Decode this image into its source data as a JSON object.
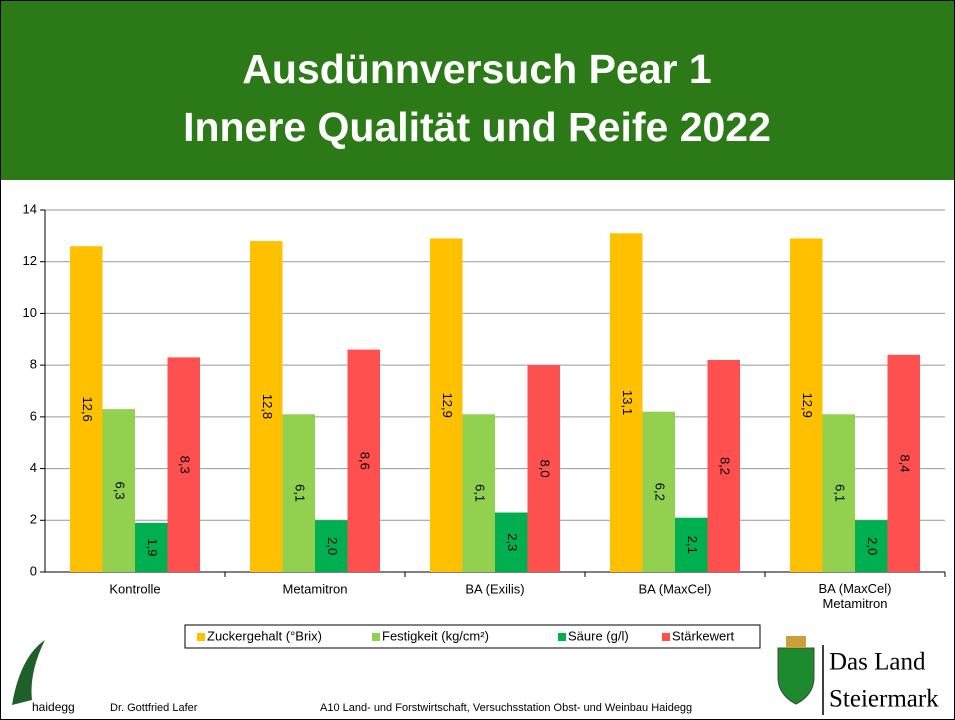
{
  "chart_data": {
    "type": "bar",
    "title": [
      "Ausdünnversuch Pear 1",
      "Innere Qualität und Reife 2022"
    ],
    "categories": [
      "Kontrolle",
      "Metamitron",
      "BA (Exilis)",
      "BA (MaxCel)",
      "BA (MaxCel)\nMetamitron"
    ],
    "series": [
      {
        "name": "Zuckergehalt (°Brix)",
        "color": "#ffc000",
        "values": [
          12.6,
          12.8,
          12.9,
          13.1,
          12.9
        ],
        "value_labels": [
          "12,6",
          "12,8",
          "12,9",
          "13,1",
          "12,9"
        ]
      },
      {
        "name": "Festigkeit (kg/cm²)",
        "color": "#92d050",
        "values": [
          6.3,
          6.1,
          6.1,
          6.2,
          6.1
        ],
        "value_labels": [
          "6,3",
          "6,1",
          "6,1",
          "6,2",
          "6,1"
        ]
      },
      {
        "name": "Säure (g/l)",
        "color": "#00b050",
        "values": [
          1.9,
          2.0,
          2.3,
          2.1,
          2.0
        ],
        "value_labels": [
          "1,9",
          "2,0",
          "2,3",
          "2,1",
          "2,0"
        ]
      },
      {
        "name": "Stärkewert",
        "color": "#ff5050",
        "values": [
          8.3,
          8.6,
          8.0,
          8.2,
          8.4
        ],
        "value_labels": [
          "8,3",
          "8,6",
          "8,0",
          "8,2",
          "8,4"
        ]
      }
    ],
    "ylim": [
      0,
      14
    ],
    "yticks": [
      0,
      2,
      4,
      6,
      8,
      10,
      12,
      14
    ],
    "grid": true,
    "legend": "bottom"
  },
  "footer": {
    "logo_text": "haidegg",
    "author": "Dr. Gottfried Lafer",
    "institution": "A10 Land- und Forstwirtschaft, Versuchsstation Obst- und Weinbau Haidegg",
    "brand": [
      "Das Land",
      "Steiermark"
    ]
  }
}
